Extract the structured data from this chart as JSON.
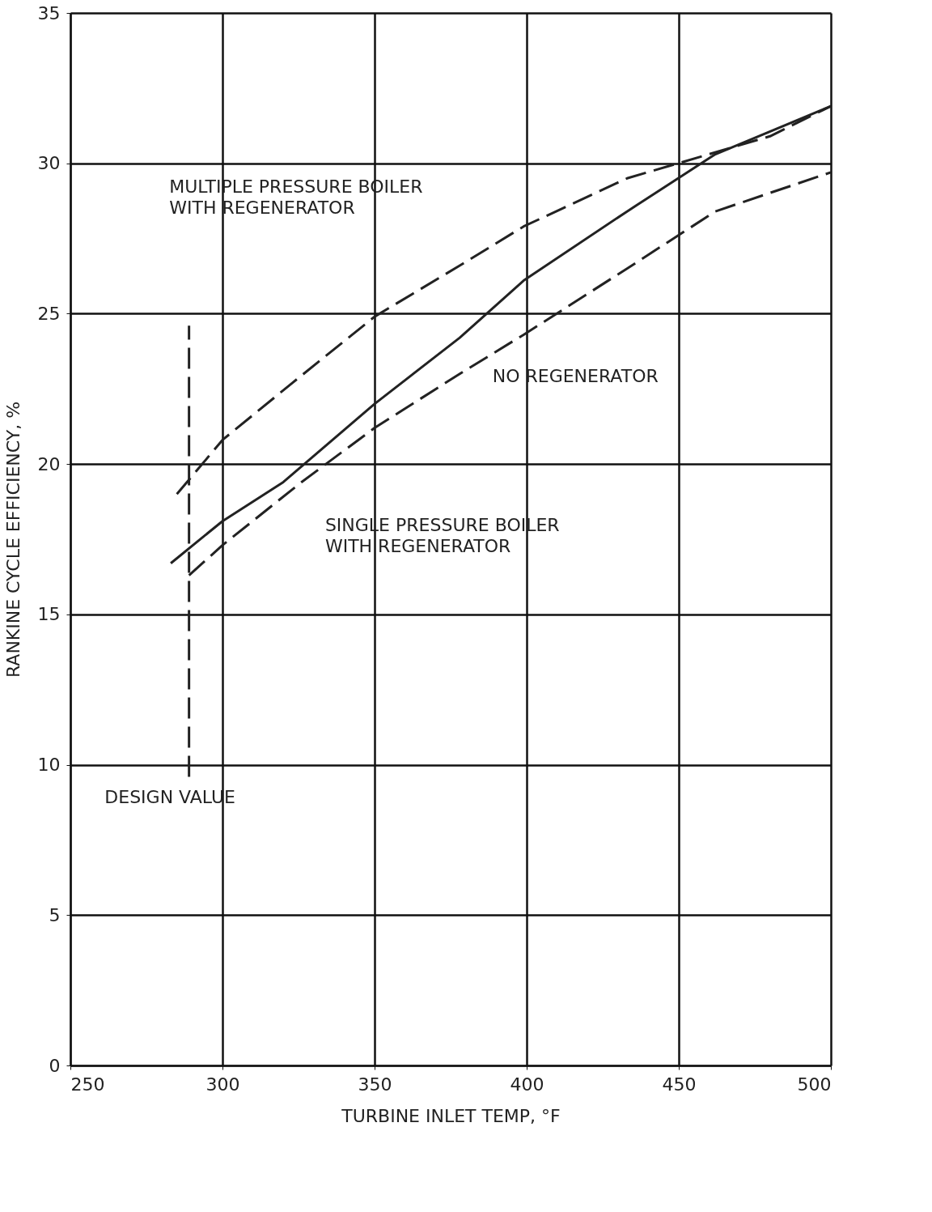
{
  "chart_data": {
    "type": "line",
    "xlabel": "TURBINE INLET TEMP, °F",
    "ylabel": "RANKINE CYCLE EFFICIENCY, %",
    "xlim": [
      250,
      500
    ],
    "xticks": [
      250,
      300,
      350,
      400,
      450,
      500
    ],
    "ylim": [
      0,
      35
    ],
    "yticks": [
      0,
      5,
      10,
      15,
      20,
      25,
      30,
      35
    ],
    "grid": true,
    "marker": "none",
    "series": [
      {
        "color": "#222222",
        "line_style": "dashed",
        "x": [
          285,
          300,
          323,
          350,
          378,
          399,
          433,
          480,
          500
        ],
        "values": [
          19.0,
          20.8,
          22.7,
          24.9,
          26.6,
          27.9,
          29.5,
          30.9,
          31.9
        ]
      },
      {
        "color": "#222222",
        "line_style": "solid",
        "x": [
          283,
          300,
          320,
          350,
          378,
          399,
          433,
          462,
          500
        ],
        "values": [
          16.7,
          18.1,
          19.4,
          22.0,
          24.2,
          26.1,
          28.4,
          30.3,
          31.9
        ]
      },
      {
        "color": "#222222",
        "line_style": "dashed",
        "x": [
          289,
          300,
          326,
          350,
          378,
          399,
          433,
          462,
          500
        ],
        "values": [
          16.3,
          17.3,
          19.4,
          21.2,
          23.0,
          24.3,
          26.5,
          28.4,
          29.7
        ]
      },
      {
        "color": "#222222",
        "line_style": "dashed",
        "x": [
          289,
          289
        ],
        "values": [
          9.6,
          24.6
        ]
      }
    ],
    "annotations": [
      "MULTIPLE PRESSURE BOILER\nWITH REGENERATOR",
      "NO REGENERATOR",
      "SINGLE PRESSURE BOILER\nWITH REGENERATOR",
      "DESIGN VALUE"
    ]
  }
}
